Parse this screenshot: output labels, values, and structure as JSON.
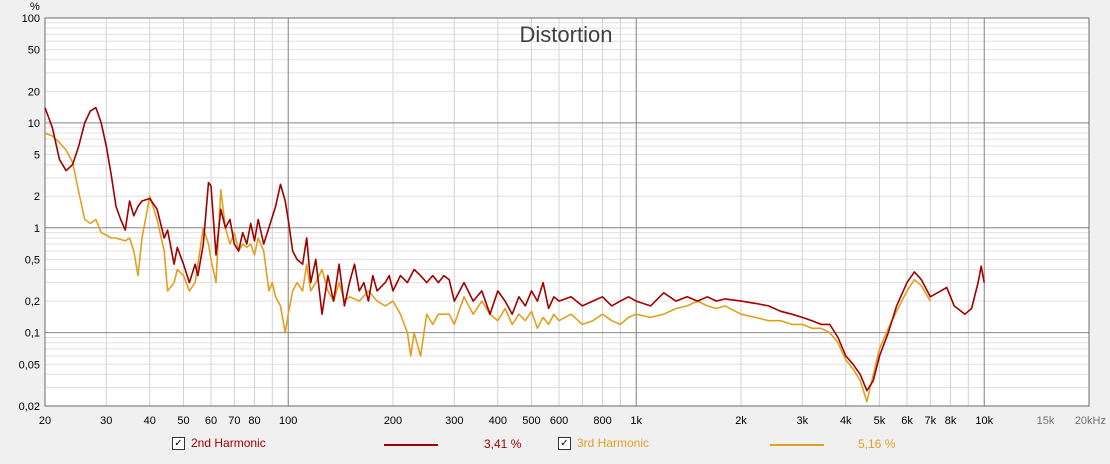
{
  "chart_data": {
    "type": "line",
    "title": "Distortion",
    "y_unit": "%",
    "x_scale": "log",
    "y_scale": "log",
    "xlim": [
      20,
      20000
    ],
    "ylim": [
      0.02,
      100
    ],
    "grid": true,
    "x_ticks": [
      {
        "v": 20,
        "label": "20"
      },
      {
        "v": 30,
        "label": "30"
      },
      {
        "v": 40,
        "label": "40"
      },
      {
        "v": 50,
        "label": "50"
      },
      {
        "v": 60,
        "label": "60"
      },
      {
        "v": 70,
        "label": "70"
      },
      {
        "v": 80,
        "label": "80"
      },
      {
        "v": 100,
        "label": "100"
      },
      {
        "v": 200,
        "label": "200"
      },
      {
        "v": 300,
        "label": "300"
      },
      {
        "v": 400,
        "label": "400"
      },
      {
        "v": 500,
        "label": "500"
      },
      {
        "v": 600,
        "label": "600"
      },
      {
        "v": 800,
        "label": "800"
      },
      {
        "v": 1000,
        "label": "1k"
      },
      {
        "v": 2000,
        "label": "2k"
      },
      {
        "v": 3000,
        "label": "3k"
      },
      {
        "v": 4000,
        "label": "4k"
      },
      {
        "v": 5000,
        "label": "5k"
      },
      {
        "v": 6000,
        "label": "6k"
      },
      {
        "v": 7000,
        "label": "7k"
      },
      {
        "v": 8000,
        "label": "8k"
      },
      {
        "v": 10000,
        "label": "10k"
      },
      {
        "v": 15000,
        "label": "15k"
      },
      {
        "v": 20000,
        "label": "20kHz"
      }
    ],
    "y_ticks": [
      {
        "v": 100,
        "label": "100"
      },
      {
        "v": 50,
        "label": "50"
      },
      {
        "v": 20,
        "label": "20"
      },
      {
        "v": 10,
        "label": "10"
      },
      {
        "v": 5,
        "label": "5"
      },
      {
        "v": 2,
        "label": "2"
      },
      {
        "v": 1,
        "label": "1"
      },
      {
        "v": 0.5,
        "label": "0,5"
      },
      {
        "v": 0.2,
        "label": "0,2"
      },
      {
        "v": 0.1,
        "label": "0,1"
      },
      {
        "v": 0.05,
        "label": "0,05"
      },
      {
        "v": 0.02,
        "label": "0,02"
      }
    ],
    "series": [
      {
        "name": "2nd Harmonic",
        "color": "#a00000",
        "summary": "3,41 %",
        "points": [
          [
            20,
            14
          ],
          [
            21,
            9
          ],
          [
            22,
            4.5
          ],
          [
            23,
            3.5
          ],
          [
            24,
            4
          ],
          [
            25,
            6
          ],
          [
            26,
            10
          ],
          [
            27,
            13
          ],
          [
            28,
            14
          ],
          [
            29,
            10
          ],
          [
            30,
            6
          ],
          [
            31,
            3.2
          ],
          [
            32,
            1.6
          ],
          [
            33,
            1.2
          ],
          [
            34,
            0.95
          ],
          [
            35,
            1.8
          ],
          [
            36,
            1.3
          ],
          [
            37,
            1.6
          ],
          [
            38,
            1.8
          ],
          [
            40,
            1.9
          ],
          [
            42,
            1.5
          ],
          [
            44,
            0.8
          ],
          [
            45,
            0.95
          ],
          [
            47,
            0.45
          ],
          [
            48,
            0.65
          ],
          [
            50,
            0.45
          ],
          [
            52,
            0.3
          ],
          [
            54,
            0.45
          ],
          [
            55,
            0.35
          ],
          [
            57,
            0.7
          ],
          [
            59,
            2.7
          ],
          [
            60,
            2.5
          ],
          [
            62,
            0.55
          ],
          [
            64,
            1.5
          ],
          [
            66,
            1.0
          ],
          [
            68,
            1.2
          ],
          [
            70,
            0.7
          ],
          [
            72,
            0.6
          ],
          [
            74,
            0.9
          ],
          [
            76,
            0.7
          ],
          [
            78,
            1.1
          ],
          [
            80,
            0.75
          ],
          [
            82,
            1.2
          ],
          [
            85,
            0.7
          ],
          [
            88,
            1.0
          ],
          [
            92,
            1.6
          ],
          [
            95,
            2.6
          ],
          [
            98,
            1.8
          ],
          [
            100,
            1.2
          ],
          [
            103,
            0.6
          ],
          [
            106,
            0.5
          ],
          [
            110,
            0.45
          ],
          [
            113,
            0.8
          ],
          [
            116,
            0.3
          ],
          [
            120,
            0.5
          ],
          [
            125,
            0.15
          ],
          [
            130,
            0.35
          ],
          [
            135,
            0.2
          ],
          [
            140,
            0.45
          ],
          [
            145,
            0.18
          ],
          [
            150,
            0.3
          ],
          [
            155,
            0.45
          ],
          [
            160,
            0.25
          ],
          [
            165,
            0.3
          ],
          [
            170,
            0.2
          ],
          [
            175,
            0.35
          ],
          [
            180,
            0.25
          ],
          [
            190,
            0.3
          ],
          [
            195,
            0.35
          ],
          [
            200,
            0.25
          ],
          [
            210,
            0.35
          ],
          [
            220,
            0.3
          ],
          [
            230,
            0.4
          ],
          [
            240,
            0.35
          ],
          [
            250,
            0.3
          ],
          [
            260,
            0.35
          ],
          [
            270,
            0.3
          ],
          [
            280,
            0.35
          ],
          [
            290,
            0.32
          ],
          [
            300,
            0.2
          ],
          [
            320,
            0.3
          ],
          [
            340,
            0.2
          ],
          [
            360,
            0.25
          ],
          [
            380,
            0.15
          ],
          [
            400,
            0.25
          ],
          [
            420,
            0.2
          ],
          [
            440,
            0.15
          ],
          [
            460,
            0.22
          ],
          [
            480,
            0.18
          ],
          [
            500,
            0.25
          ],
          [
            520,
            0.2
          ],
          [
            540,
            0.3
          ],
          [
            560,
            0.17
          ],
          [
            580,
            0.22
          ],
          [
            600,
            0.2
          ],
          [
            650,
            0.22
          ],
          [
            700,
            0.18
          ],
          [
            750,
            0.2
          ],
          [
            800,
            0.22
          ],
          [
            850,
            0.18
          ],
          [
            900,
            0.2
          ],
          [
            950,
            0.22
          ],
          [
            1000,
            0.2
          ],
          [
            1100,
            0.18
          ],
          [
            1200,
            0.24
          ],
          [
            1300,
            0.2
          ],
          [
            1400,
            0.22
          ],
          [
            1500,
            0.2
          ],
          [
            1600,
            0.22
          ],
          [
            1700,
            0.2
          ],
          [
            1800,
            0.21
          ],
          [
            2000,
            0.2
          ],
          [
            2200,
            0.19
          ],
          [
            2400,
            0.18
          ],
          [
            2600,
            0.16
          ],
          [
            2800,
            0.15
          ],
          [
            3000,
            0.14
          ],
          [
            3200,
            0.13
          ],
          [
            3400,
            0.12
          ],
          [
            3600,
            0.12
          ],
          [
            3800,
            0.09
          ],
          [
            4000,
            0.06
          ],
          [
            4200,
            0.05
          ],
          [
            4400,
            0.04
          ],
          [
            4600,
            0.028
          ],
          [
            4800,
            0.035
          ],
          [
            5000,
            0.06
          ],
          [
            5300,
            0.1
          ],
          [
            5600,
            0.18
          ],
          [
            6000,
            0.3
          ],
          [
            6300,
            0.38
          ],
          [
            6600,
            0.32
          ],
          [
            7000,
            0.22
          ],
          [
            7500,
            0.25
          ],
          [
            7800,
            0.27
          ],
          [
            8200,
            0.18
          ],
          [
            8800,
            0.15
          ],
          [
            9200,
            0.17
          ],
          [
            9600,
            0.3
          ],
          [
            9800,
            0.43
          ],
          [
            10000,
            0.3
          ]
        ]
      },
      {
        "name": "3rd Harmonic",
        "color": "#e0a020",
        "summary": "5,16 %",
        "points": [
          [
            20,
            8
          ],
          [
            21,
            7.5
          ],
          [
            22,
            6.5
          ],
          [
            23,
            5.5
          ],
          [
            24,
            4.2
          ],
          [
            25,
            2.2
          ],
          [
            26,
            1.2
          ],
          [
            27,
            1.1
          ],
          [
            28,
            1.2
          ],
          [
            29,
            0.9
          ],
          [
            30,
            0.85
          ],
          [
            31,
            0.8
          ],
          [
            32,
            0.8
          ],
          [
            34,
            0.75
          ],
          [
            35,
            0.8
          ],
          [
            36,
            0.6
          ],
          [
            37,
            0.35
          ],
          [
            38,
            0.8
          ],
          [
            40,
            2.0
          ],
          [
            42,
            1.2
          ],
          [
            44,
            0.6
          ],
          [
            45,
            0.25
          ],
          [
            47,
            0.3
          ],
          [
            48,
            0.4
          ],
          [
            50,
            0.35
          ],
          [
            52,
            0.25
          ],
          [
            54,
            0.3
          ],
          [
            55,
            0.45
          ],
          [
            57,
            1.0
          ],
          [
            59,
            0.7
          ],
          [
            60,
            0.5
          ],
          [
            62,
            0.3
          ],
          [
            64,
            2.3
          ],
          [
            66,
            1.0
          ],
          [
            68,
            0.7
          ],
          [
            70,
            0.9
          ],
          [
            72,
            0.6
          ],
          [
            74,
            0.7
          ],
          [
            76,
            0.65
          ],
          [
            78,
            0.7
          ],
          [
            80,
            0.55
          ],
          [
            82,
            0.8
          ],
          [
            85,
            0.6
          ],
          [
            88,
            0.25
          ],
          [
            90,
            0.3
          ],
          [
            92,
            0.22
          ],
          [
            95,
            0.18
          ],
          [
            98,
            0.1
          ],
          [
            100,
            0.15
          ],
          [
            103,
            0.25
          ],
          [
            106,
            0.3
          ],
          [
            110,
            0.25
          ],
          [
            113,
            0.45
          ],
          [
            116,
            0.25
          ],
          [
            120,
            0.3
          ],
          [
            125,
            0.4
          ],
          [
            130,
            0.25
          ],
          [
            135,
            0.2
          ],
          [
            140,
            0.3
          ],
          [
            145,
            0.2
          ],
          [
            150,
            0.22
          ],
          [
            160,
            0.2
          ],
          [
            170,
            0.25
          ],
          [
            180,
            0.2
          ],
          [
            190,
            0.18
          ],
          [
            200,
            0.2
          ],
          [
            210,
            0.15
          ],
          [
            220,
            0.1
          ],
          [
            225,
            0.06
          ],
          [
            230,
            0.1
          ],
          [
            240,
            0.06
          ],
          [
            250,
            0.15
          ],
          [
            260,
            0.12
          ],
          [
            270,
            0.15
          ],
          [
            280,
            0.15
          ],
          [
            290,
            0.15
          ],
          [
            300,
            0.12
          ],
          [
            320,
            0.22
          ],
          [
            340,
            0.15
          ],
          [
            360,
            0.2
          ],
          [
            380,
            0.15
          ],
          [
            400,
            0.13
          ],
          [
            420,
            0.17
          ],
          [
            440,
            0.12
          ],
          [
            460,
            0.15
          ],
          [
            480,
            0.13
          ],
          [
            500,
            0.16
          ],
          [
            520,
            0.11
          ],
          [
            540,
            0.14
          ],
          [
            560,
            0.12
          ],
          [
            580,
            0.15
          ],
          [
            600,
            0.13
          ],
          [
            650,
            0.15
          ],
          [
            700,
            0.12
          ],
          [
            750,
            0.13
          ],
          [
            800,
            0.15
          ],
          [
            850,
            0.13
          ],
          [
            900,
            0.12
          ],
          [
            950,
            0.14
          ],
          [
            1000,
            0.15
          ],
          [
            1100,
            0.14
          ],
          [
            1200,
            0.15
          ],
          [
            1300,
            0.17
          ],
          [
            1400,
            0.18
          ],
          [
            1500,
            0.2
          ],
          [
            1600,
            0.18
          ],
          [
            1700,
            0.17
          ],
          [
            1800,
            0.18
          ],
          [
            2000,
            0.15
          ],
          [
            2200,
            0.14
          ],
          [
            2400,
            0.13
          ],
          [
            2600,
            0.13
          ],
          [
            2800,
            0.12
          ],
          [
            3000,
            0.12
          ],
          [
            3200,
            0.11
          ],
          [
            3400,
            0.11
          ],
          [
            3600,
            0.1
          ],
          [
            3800,
            0.08
          ],
          [
            4000,
            0.055
          ],
          [
            4200,
            0.045
          ],
          [
            4400,
            0.035
          ],
          [
            4600,
            0.022
          ],
          [
            4800,
            0.04
          ],
          [
            5000,
            0.07
          ],
          [
            5300,
            0.11
          ],
          [
            5600,
            0.16
          ],
          [
            6000,
            0.25
          ],
          [
            6300,
            0.32
          ],
          [
            6600,
            0.28
          ],
          [
            7000,
            0.2
          ]
        ]
      }
    ]
  },
  "legend": {
    "items": [
      {
        "checked": "✓",
        "label": "2nd Harmonic",
        "value": "3,41 %",
        "color": "#a00000"
      },
      {
        "checked": "✓",
        "label": "3rd Harmonic",
        "value": "5,16 %",
        "color": "#e0a020"
      }
    ]
  }
}
